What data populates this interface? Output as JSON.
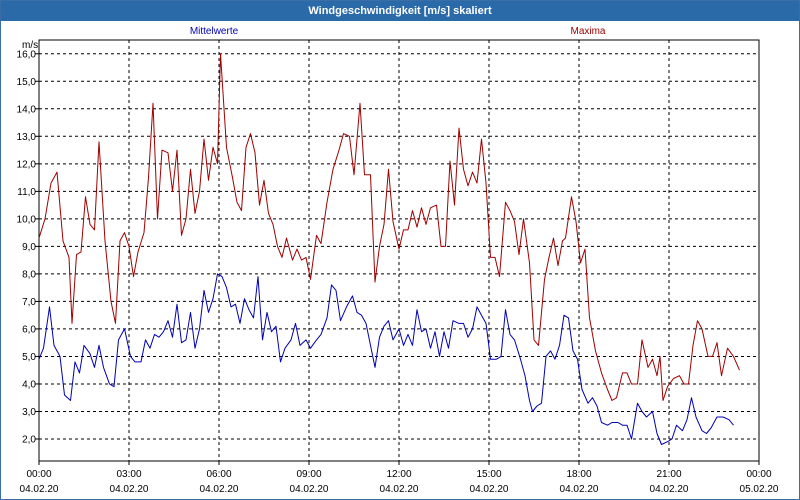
{
  "window": {
    "title": "Windgeschwindigkeit [m/s] skaliert"
  },
  "colors": {
    "titlebar": "#2a6aa8",
    "mean": "#0000b4",
    "max": "#a00000",
    "grid": "#000000"
  },
  "chart_data": {
    "type": "line",
    "title": "Windgeschwindigkeit [m/s] skaliert",
    "ylabel": "m/s",
    "ylim": [
      1.2,
      16.5
    ],
    "yticks": [
      "2,0",
      "3,0",
      "4,0",
      "5,0",
      "6,0",
      "7,0",
      "8,0",
      "9,0",
      "10,0",
      "11,0",
      "12,0",
      "13,0",
      "14,0",
      "15,0",
      "16,0"
    ],
    "ytick_values": [
      2,
      3,
      4,
      5,
      6,
      7,
      8,
      9,
      10,
      11,
      12,
      13,
      14,
      15,
      16
    ],
    "xlim": [
      0,
      24
    ],
    "xticks": [
      {
        "time": "00:00",
        "date": "04.02.20"
      },
      {
        "time": "03:00",
        "date": "04.02.20"
      },
      {
        "time": "06:00",
        "date": "04.02.20"
      },
      {
        "time": "09:00",
        "date": "04.02.20"
      },
      {
        "time": "12:00",
        "date": "04.02.20"
      },
      {
        "time": "15:00",
        "date": "04.02.20"
      },
      {
        "time": "18:00",
        "date": "04.02.20"
      },
      {
        "time": "21:00",
        "date": "04.02.20"
      },
      {
        "time": "00:00",
        "date": "05.02.20"
      }
    ],
    "grid": true,
    "legend": [
      {
        "name": "Mittelwerte",
        "position": "top-left"
      },
      {
        "name": "Maxima",
        "position": "top-right"
      }
    ],
    "series": [
      {
        "name": "Maxima",
        "points": [
          [
            0,
            9.3
          ],
          [
            0.2,
            10.0
          ],
          [
            0.4,
            11.3
          ],
          [
            0.6,
            11.7
          ],
          [
            0.8,
            9.2
          ],
          [
            1.0,
            8.6
          ],
          [
            1.1,
            6.2
          ],
          [
            1.25,
            8.7
          ],
          [
            1.4,
            8.8
          ],
          [
            1.55,
            10.8
          ],
          [
            1.7,
            9.8
          ],
          [
            1.85,
            9.6
          ],
          [
            2.0,
            12.8
          ],
          [
            2.2,
            9.2
          ],
          [
            2.4,
            7.0
          ],
          [
            2.55,
            6.2
          ],
          [
            2.7,
            9.2
          ],
          [
            2.85,
            9.5
          ],
          [
            3.0,
            9.0
          ],
          [
            3.15,
            7.9
          ],
          [
            3.3,
            8.8
          ],
          [
            3.5,
            9.5
          ],
          [
            3.65,
            11.5
          ],
          [
            3.8,
            14.2
          ],
          [
            3.95,
            10.0
          ],
          [
            4.1,
            12.5
          ],
          [
            4.3,
            12.4
          ],
          [
            4.45,
            11.0
          ],
          [
            4.6,
            12.5
          ],
          [
            4.75,
            9.4
          ],
          [
            4.9,
            10.0
          ],
          [
            5.05,
            11.8
          ],
          [
            5.2,
            10.2
          ],
          [
            5.35,
            11.0
          ],
          [
            5.5,
            12.9
          ],
          [
            5.65,
            11.4
          ],
          [
            5.8,
            12.6
          ],
          [
            5.95,
            12.0
          ],
          [
            6.05,
            16.0
          ],
          [
            6.25,
            12.6
          ],
          [
            6.45,
            11.5
          ],
          [
            6.6,
            10.6
          ],
          [
            6.75,
            10.3
          ],
          [
            6.9,
            12.6
          ],
          [
            7.05,
            13.1
          ],
          [
            7.2,
            12.4
          ],
          [
            7.35,
            10.5
          ],
          [
            7.5,
            11.4
          ],
          [
            7.65,
            10.2
          ],
          [
            7.8,
            9.8
          ],
          [
            7.95,
            9.0
          ],
          [
            8.1,
            8.6
          ],
          [
            8.25,
            9.3
          ],
          [
            8.45,
            8.5
          ],
          [
            8.6,
            8.9
          ],
          [
            8.75,
            8.5
          ],
          [
            8.9,
            8.6
          ],
          [
            9.05,
            7.8
          ],
          [
            9.25,
            9.4
          ],
          [
            9.4,
            9.1
          ],
          [
            9.6,
            10.6
          ],
          [
            9.8,
            11.8
          ],
          [
            10.0,
            12.5
          ],
          [
            10.15,
            13.1
          ],
          [
            10.35,
            13.0
          ],
          [
            10.5,
            11.6
          ],
          [
            10.7,
            14.2
          ],
          [
            10.85,
            11.6
          ],
          [
            11.05,
            11.6
          ],
          [
            11.2,
            7.7
          ],
          [
            11.35,
            9.0
          ],
          [
            11.5,
            9.8
          ],
          [
            11.65,
            11.8
          ],
          [
            11.8,
            9.9
          ],
          [
            12.0,
            8.9
          ],
          [
            12.15,
            9.6
          ],
          [
            12.3,
            9.6
          ],
          [
            12.45,
            10.3
          ],
          [
            12.6,
            9.7
          ],
          [
            12.75,
            10.4
          ],
          [
            12.9,
            9.8
          ],
          [
            13.05,
            10.4
          ],
          [
            13.25,
            10.5
          ],
          [
            13.4,
            9.0
          ],
          [
            13.55,
            9.0
          ],
          [
            13.7,
            12.1
          ],
          [
            13.85,
            10.5
          ],
          [
            14.0,
            13.3
          ],
          [
            14.15,
            11.8
          ],
          [
            14.3,
            11.2
          ],
          [
            14.45,
            11.7
          ],
          [
            14.6,
            11.3
          ],
          [
            14.75,
            12.9
          ],
          [
            14.9,
            11.3
          ],
          [
            15.05,
            8.6
          ],
          [
            15.2,
            8.6
          ],
          [
            15.35,
            7.9
          ],
          [
            15.55,
            10.6
          ],
          [
            15.7,
            10.3
          ],
          [
            15.85,
            9.9
          ],
          [
            16.0,
            8.7
          ],
          [
            16.15,
            10.0
          ],
          [
            16.35,
            8.4
          ],
          [
            16.5,
            5.6
          ],
          [
            16.65,
            5.4
          ],
          [
            16.85,
            7.8
          ],
          [
            17.0,
            8.6
          ],
          [
            17.15,
            9.3
          ],
          [
            17.3,
            8.3
          ],
          [
            17.45,
            9.2
          ],
          [
            17.55,
            9.3
          ],
          [
            17.75,
            10.8
          ],
          [
            17.9,
            9.9
          ],
          [
            18.05,
            8.4
          ],
          [
            18.2,
            8.9
          ],
          [
            18.35,
            6.4
          ],
          [
            18.55,
            5.2
          ],
          [
            18.75,
            4.4
          ],
          [
            18.95,
            3.8
          ],
          [
            19.1,
            3.4
          ],
          [
            19.25,
            3.5
          ],
          [
            19.45,
            4.4
          ],
          [
            19.6,
            4.4
          ],
          [
            19.75,
            4.0
          ],
          [
            19.95,
            4.0
          ],
          [
            20.1,
            5.6
          ],
          [
            20.3,
            4.6
          ],
          [
            20.45,
            4.9
          ],
          [
            20.6,
            4.3
          ],
          [
            20.7,
            5.0
          ],
          [
            20.8,
            3.4
          ],
          [
            20.95,
            3.9
          ],
          [
            21.15,
            4.2
          ],
          [
            21.35,
            4.3
          ],
          [
            21.5,
            4.0
          ],
          [
            21.65,
            4.0
          ],
          [
            21.8,
            5.4
          ],
          [
            21.95,
            6.3
          ],
          [
            22.1,
            6.0
          ],
          [
            22.3,
            5.0
          ],
          [
            22.45,
            5.0
          ],
          [
            22.6,
            5.5
          ],
          [
            22.75,
            4.3
          ],
          [
            22.95,
            5.3
          ],
          [
            23.15,
            5.0
          ],
          [
            23.35,
            4.5
          ]
        ]
      },
      {
        "name": "Mittelwerte",
        "points": [
          [
            0,
            4.9
          ],
          [
            0.15,
            5.3
          ],
          [
            0.35,
            6.8
          ],
          [
            0.5,
            5.4
          ],
          [
            0.7,
            5.0
          ],
          [
            0.85,
            3.6
          ],
          [
            1.05,
            3.4
          ],
          [
            1.2,
            4.8
          ],
          [
            1.35,
            4.4
          ],
          [
            1.5,
            5.4
          ],
          [
            1.7,
            5.1
          ],
          [
            1.85,
            4.6
          ],
          [
            2.0,
            5.4
          ],
          [
            2.15,
            4.6
          ],
          [
            2.35,
            4.0
          ],
          [
            2.5,
            3.9
          ],
          [
            2.65,
            5.6
          ],
          [
            2.85,
            6.0
          ],
          [
            3.05,
            5.0
          ],
          [
            3.2,
            4.8
          ],
          [
            3.4,
            4.8
          ],
          [
            3.55,
            5.6
          ],
          [
            3.7,
            5.3
          ],
          [
            3.85,
            5.8
          ],
          [
            4.0,
            5.7
          ],
          [
            4.15,
            5.9
          ],
          [
            4.3,
            6.3
          ],
          [
            4.45,
            5.7
          ],
          [
            4.6,
            6.9
          ],
          [
            4.75,
            5.5
          ],
          [
            4.9,
            5.6
          ],
          [
            5.05,
            6.6
          ],
          [
            5.2,
            5.3
          ],
          [
            5.35,
            6.0
          ],
          [
            5.5,
            7.4
          ],
          [
            5.65,
            6.6
          ],
          [
            5.8,
            7.1
          ],
          [
            5.95,
            8.0
          ],
          [
            6.1,
            7.9
          ],
          [
            6.25,
            7.5
          ],
          [
            6.4,
            6.8
          ],
          [
            6.55,
            6.9
          ],
          [
            6.7,
            6.2
          ],
          [
            6.85,
            7.1
          ],
          [
            7.0,
            6.7
          ],
          [
            7.15,
            6.4
          ],
          [
            7.3,
            7.9
          ],
          [
            7.45,
            5.6
          ],
          [
            7.6,
            6.6
          ],
          [
            7.75,
            5.9
          ],
          [
            7.9,
            6.1
          ],
          [
            8.05,
            4.8
          ],
          [
            8.2,
            5.3
          ],
          [
            8.4,
            5.6
          ],
          [
            8.55,
            6.2
          ],
          [
            8.7,
            5.4
          ],
          [
            8.9,
            5.6
          ],
          [
            9.05,
            5.3
          ],
          [
            9.25,
            5.6
          ],
          [
            9.4,
            5.8
          ],
          [
            9.6,
            6.4
          ],
          [
            9.75,
            7.6
          ],
          [
            9.9,
            7.4
          ],
          [
            10.05,
            6.3
          ],
          [
            10.25,
            6.8
          ],
          [
            10.45,
            7.2
          ],
          [
            10.6,
            6.6
          ],
          [
            10.75,
            6.5
          ],
          [
            10.9,
            6.2
          ],
          [
            11.05,
            5.4
          ],
          [
            11.2,
            4.6
          ],
          [
            11.35,
            5.7
          ],
          [
            11.5,
            6.1
          ],
          [
            11.65,
            6.3
          ],
          [
            11.8,
            5.6
          ],
          [
            12.0,
            6.0
          ],
          [
            12.15,
            5.4
          ],
          [
            12.3,
            5.8
          ],
          [
            12.45,
            5.4
          ],
          [
            12.6,
            6.7
          ],
          [
            12.75,
            5.9
          ],
          [
            12.9,
            6.0
          ],
          [
            13.05,
            5.3
          ],
          [
            13.2,
            5.9
          ],
          [
            13.35,
            5.0
          ],
          [
            13.5,
            5.9
          ],
          [
            13.65,
            5.3
          ],
          [
            13.8,
            6.3
          ],
          [
            14.0,
            6.2
          ],
          [
            14.15,
            6.2
          ],
          [
            14.3,
            5.7
          ],
          [
            14.45,
            6.0
          ],
          [
            14.6,
            6.8
          ],
          [
            14.75,
            6.5
          ],
          [
            14.9,
            6.2
          ],
          [
            15.05,
            4.9
          ],
          [
            15.25,
            4.9
          ],
          [
            15.4,
            5.0
          ],
          [
            15.55,
            6.7
          ],
          [
            15.7,
            5.8
          ],
          [
            15.85,
            5.6
          ],
          [
            16.05,
            4.9
          ],
          [
            16.2,
            4.3
          ],
          [
            16.35,
            3.4
          ],
          [
            16.45,
            3.0
          ],
          [
            16.6,
            3.2
          ],
          [
            16.75,
            3.3
          ],
          [
            16.9,
            5.0
          ],
          [
            17.05,
            5.2
          ],
          [
            17.2,
            4.9
          ],
          [
            17.35,
            5.4
          ],
          [
            17.5,
            6.5
          ],
          [
            17.65,
            6.4
          ],
          [
            17.8,
            5.2
          ],
          [
            17.95,
            4.9
          ],
          [
            18.1,
            3.8
          ],
          [
            18.3,
            3.3
          ],
          [
            18.45,
            3.5
          ],
          [
            18.6,
            3.2
          ],
          [
            18.75,
            2.6
          ],
          [
            18.95,
            2.5
          ],
          [
            19.1,
            2.6
          ],
          [
            19.3,
            2.6
          ],
          [
            19.45,
            2.5
          ],
          [
            19.6,
            2.5
          ],
          [
            19.75,
            2.0
          ],
          [
            19.95,
            3.3
          ],
          [
            20.1,
            3.0
          ],
          [
            20.25,
            2.8
          ],
          [
            20.45,
            3.0
          ],
          [
            20.6,
            2.2
          ],
          [
            20.75,
            1.8
          ],
          [
            20.95,
            1.9
          ],
          [
            21.1,
            2.0
          ],
          [
            21.25,
            2.5
          ],
          [
            21.45,
            2.3
          ],
          [
            21.6,
            2.7
          ],
          [
            21.75,
            3.5
          ],
          [
            21.9,
            2.8
          ],
          [
            22.1,
            2.3
          ],
          [
            22.25,
            2.2
          ],
          [
            22.4,
            2.4
          ],
          [
            22.6,
            2.8
          ],
          [
            22.8,
            2.8
          ],
          [
            23.0,
            2.7
          ],
          [
            23.15,
            2.5
          ]
        ]
      }
    ]
  }
}
